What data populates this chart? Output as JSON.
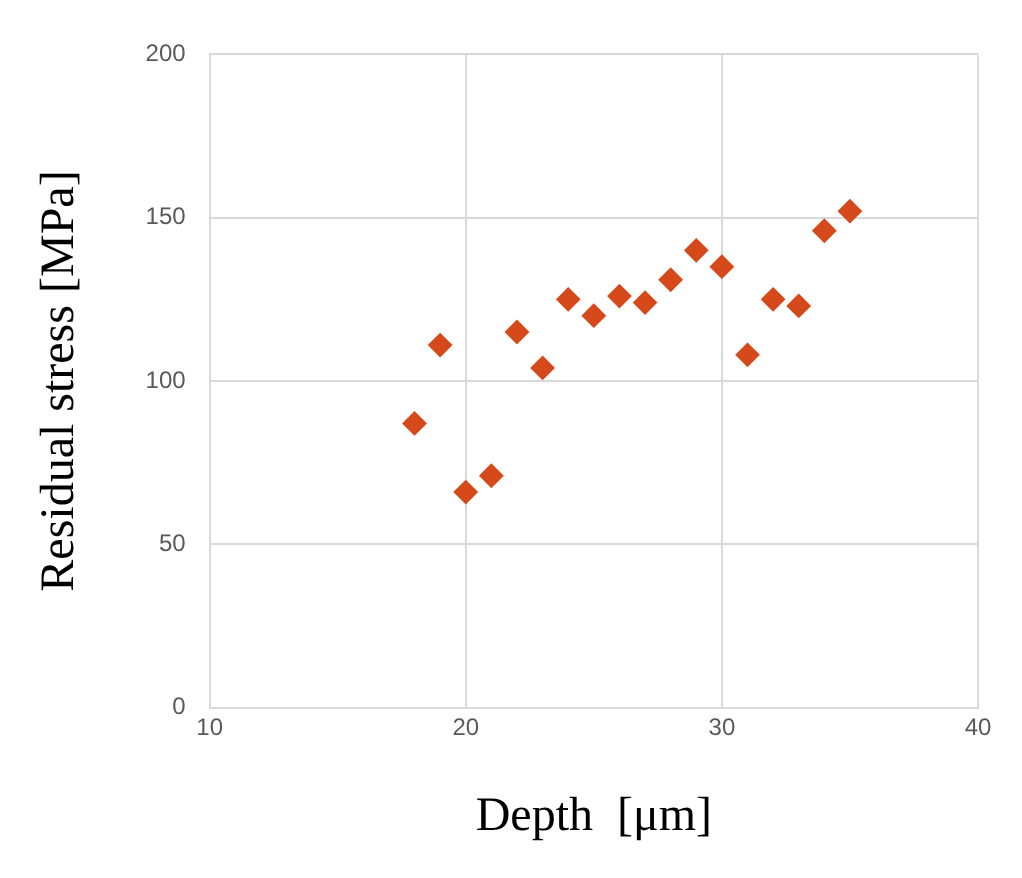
{
  "chart_data": {
    "type": "scatter",
    "xlabel": "Depth  [μm]",
    "ylabel": "Residual stress [MPa]",
    "x": [
      18,
      19,
      20,
      21,
      22,
      23,
      24,
      25,
      26,
      27,
      28,
      29,
      30,
      31,
      32,
      33,
      34,
      35
    ],
    "series": [
      {
        "color": "#d5491a",
        "values": [
          87,
          111,
          66,
          71,
          115,
          104,
          125,
          120,
          126,
          124,
          131,
          140,
          135,
          108,
          125,
          123,
          146,
          152
        ]
      }
    ],
    "xlim": [
      10,
      40
    ],
    "xticks": [
      10,
      20,
      30,
      40
    ],
    "ylim": [
      0,
      200
    ],
    "yticks": [
      0,
      50,
      100,
      150,
      200
    ],
    "grid": true,
    "legend": false,
    "marker": "diamond"
  }
}
